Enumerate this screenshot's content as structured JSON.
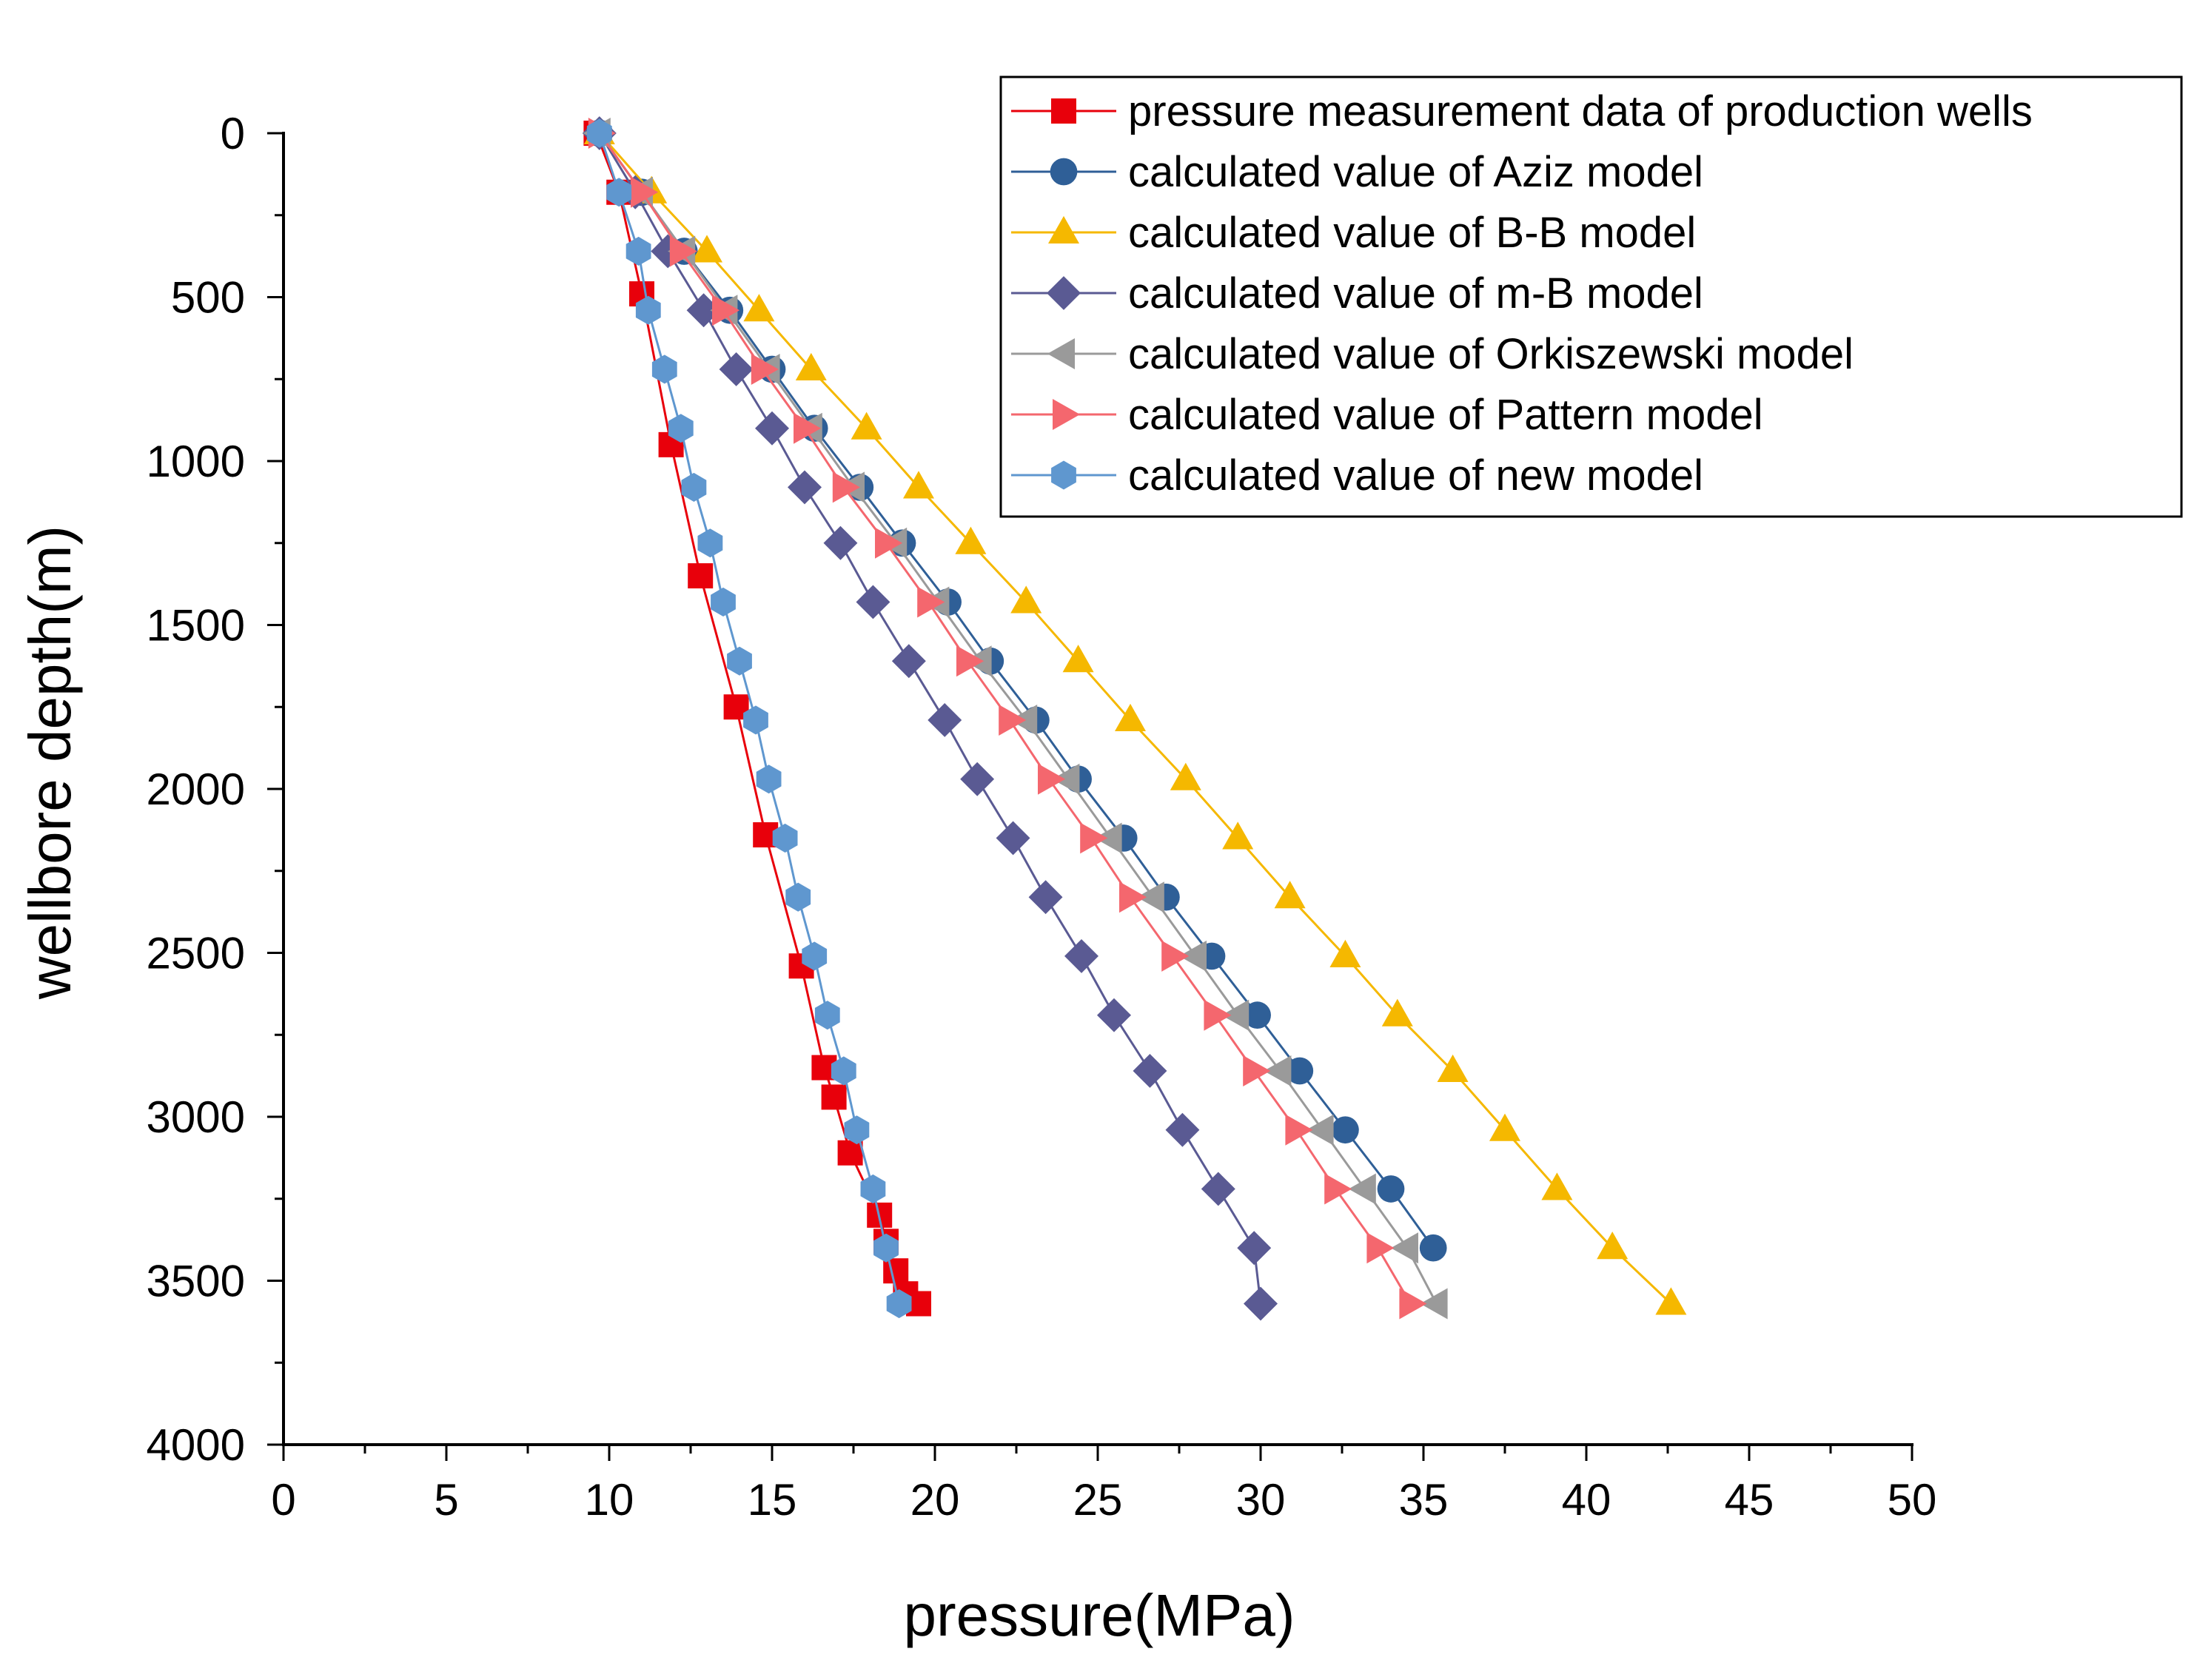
{
  "chart_data": {
    "type": "scatter",
    "title": "",
    "xlabel": "pressure(MPa)",
    "ylabel": "wellbore depth(m)",
    "xlim": [
      0,
      50
    ],
    "ylim": [
      0,
      4000
    ],
    "y_inverted": true,
    "x_ticks": [
      "0",
      "5",
      "10",
      "15",
      "20",
      "25",
      "30",
      "35",
      "40",
      "45",
      "50"
    ],
    "y_ticks": [
      "0",
      "500",
      "1000",
      "1500",
      "2000",
      "2500",
      "3000",
      "3500",
      "4000"
    ],
    "legend_position": "top-right",
    "series": [
      {
        "name": "pressure measurement data of production wells",
        "color": "#e8000b",
        "marker": "square",
        "x": [
          9.6,
          10.3,
          11.0,
          11.9,
          12.8,
          13.9,
          14.8,
          15.9,
          16.6,
          16.9,
          17.4,
          18.3,
          18.5,
          18.8,
          19.1,
          19.5
        ],
        "y": [
          0,
          180,
          490,
          950,
          1350,
          1750,
          2140,
          2540,
          2850,
          2940,
          3110,
          3300,
          3380,
          3470,
          3540,
          3570
        ]
      },
      {
        "name": "calculated value of Aziz model",
        "color": "#2f5f97",
        "marker": "circle",
        "x": [
          9.7,
          11.0,
          12.3,
          13.7,
          15.0,
          16.3,
          17.7,
          19.0,
          20.4,
          21.7,
          23.1,
          24.4,
          25.8,
          27.1,
          28.5,
          29.9,
          31.2,
          32.6,
          34.0,
          35.3
        ],
        "y": [
          0,
          180,
          360,
          540,
          720,
          900,
          1080,
          1250,
          1430,
          1610,
          1790,
          1970,
          2150,
          2330,
          2510,
          2690,
          2860,
          3040,
          3220,
          3400
        ]
      },
      {
        "name": "calculated value of B-B model",
        "color": "#f5b800",
        "marker": "triangle-up",
        "x": [
          9.7,
          11.3,
          13.0,
          14.6,
          16.2,
          17.9,
          19.5,
          21.1,
          22.8,
          24.4,
          26.0,
          27.7,
          29.3,
          30.9,
          32.6,
          34.2,
          35.9,
          37.5,
          39.1,
          40.8,
          42.6
        ],
        "y": [
          0,
          180,
          360,
          540,
          720,
          900,
          1080,
          1250,
          1430,
          1610,
          1790,
          1970,
          2150,
          2330,
          2510,
          2690,
          2860,
          3040,
          3220,
          3400,
          3570
        ]
      },
      {
        "name": "calculated value of m-B model",
        "color": "#5a5a93",
        "marker": "diamond",
        "x": [
          9.7,
          10.8,
          11.8,
          12.9,
          13.9,
          15.0,
          16.0,
          17.1,
          18.1,
          19.2,
          20.3,
          21.3,
          22.4,
          23.4,
          24.5,
          25.5,
          26.6,
          27.6,
          28.7,
          29.8,
          30.0
        ],
        "y": [
          0,
          180,
          360,
          540,
          720,
          900,
          1080,
          1250,
          1430,
          1610,
          1790,
          1970,
          2150,
          2330,
          2510,
          2690,
          2860,
          3040,
          3220,
          3400,
          3570
        ]
      },
      {
        "name": "calculated value of Orkiszewski model",
        "color": "#9a9a9a",
        "marker": "triangle-left",
        "x": [
          9.7,
          11.0,
          12.3,
          13.6,
          14.9,
          16.2,
          17.5,
          18.8,
          20.1,
          21.4,
          22.8,
          24.1,
          25.4,
          26.7,
          28.0,
          29.3,
          30.6,
          31.9,
          33.2,
          34.5,
          35.4
        ],
        "y": [
          0,
          180,
          360,
          540,
          720,
          900,
          1080,
          1250,
          1430,
          1610,
          1790,
          1970,
          2150,
          2330,
          2510,
          2690,
          2860,
          3040,
          3220,
          3400,
          3570
        ]
      },
      {
        "name": "calculated value of Pattern model",
        "color": "#f4676e",
        "marker": "triangle-right",
        "x": [
          9.7,
          11.0,
          12.2,
          13.5,
          14.7,
          16.0,
          17.2,
          18.5,
          19.8,
          21.0,
          22.3,
          23.5,
          24.8,
          26.0,
          27.3,
          28.6,
          29.8,
          31.1,
          32.3,
          33.6,
          34.6
        ],
        "y": [
          0,
          180,
          360,
          540,
          720,
          900,
          1080,
          1250,
          1430,
          1610,
          1790,
          1970,
          2150,
          2330,
          2510,
          2690,
          2860,
          3040,
          3220,
          3400,
          3570
        ]
      },
      {
        "name": "calculated value of new model",
        "color": "#5f97cf",
        "marker": "hexagon",
        "x": [
          9.7,
          10.3,
          10.9,
          11.2,
          11.7,
          12.2,
          12.6,
          13.1,
          13.5,
          14.0,
          14.5,
          14.9,
          15.4,
          15.8,
          16.3,
          16.7,
          17.2,
          17.6,
          18.1,
          18.5,
          18.9
        ],
        "y": [
          0,
          180,
          360,
          540,
          720,
          900,
          1080,
          1250,
          1430,
          1610,
          1790,
          1970,
          2150,
          2330,
          2510,
          2690,
          2860,
          3040,
          3220,
          3400,
          3570
        ]
      }
    ]
  }
}
